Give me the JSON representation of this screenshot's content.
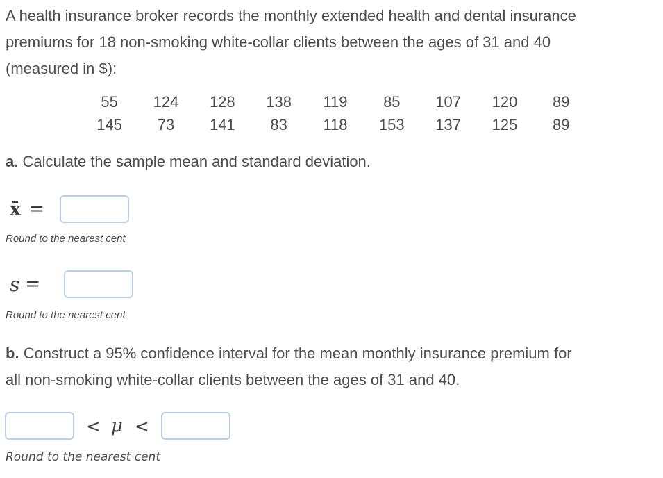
{
  "colors": {
    "text": "#4d4d4d",
    "input_border": "#b9cfe4"
  },
  "problem": {
    "intro_lines": [
      "A health insurance broker records the monthly extended health and dental insurance",
      "premiums for 18 non-smoking white-collar clients between the ages of 31 and 40",
      "(measured in $):"
    ],
    "data_table": {
      "rows": [
        [
          "55",
          "124",
          "128",
          "138",
          "119",
          "85",
          "107",
          "120",
          "89"
        ],
        [
          "145",
          "73",
          "141",
          "83",
          "118",
          "153",
          "137",
          "125",
          "89"
        ]
      ]
    }
  },
  "part_a": {
    "label": "a.",
    "prompt": "Calculate the sample mean and standard deviation.",
    "mean": {
      "symbol": "x̄",
      "equals": "=",
      "value": "",
      "note": "Round to the nearest cent"
    },
    "sd": {
      "symbol": "s",
      "equals": "=",
      "value": "",
      "note": "Round to the nearest cent"
    }
  },
  "part_b": {
    "label": "b.",
    "prompt_lines": [
      "Construct a 95% confidence interval for the mean monthly insurance premium for",
      "all non-smoking white-collar clients between the ages of 31 and 40."
    ],
    "interval": {
      "lower_value": "",
      "less_than_left": "<",
      "mu_symbol": "μ",
      "less_than_right": "<",
      "upper_value": ""
    },
    "note": "Round to the nearest cent"
  }
}
